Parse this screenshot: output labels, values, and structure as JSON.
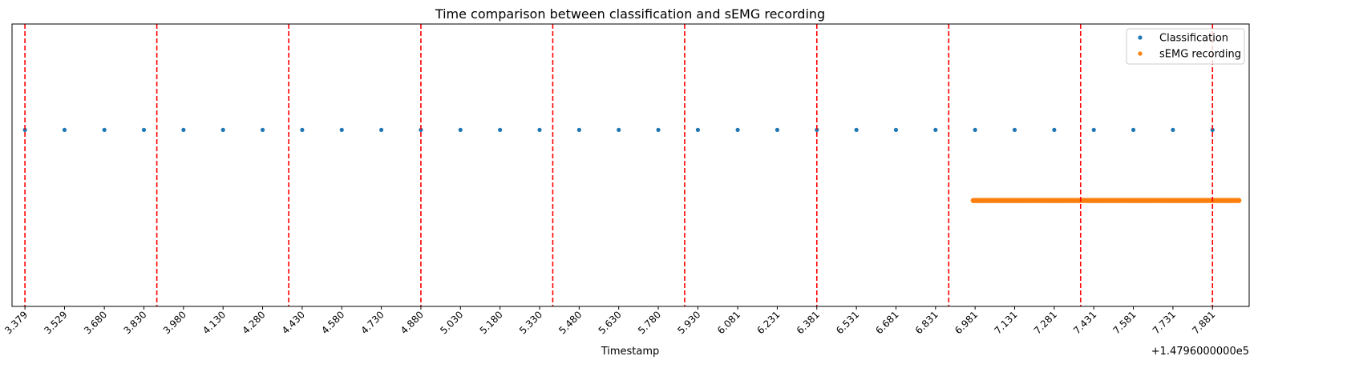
{
  "chart_data": {
    "type": "scatter",
    "title": "Time comparison between classification and sEMG recording",
    "xlabel": "Timestamp",
    "ylabel": "",
    "offset_label": "+1.4796000000e5",
    "xlim": [
      3.33,
      8.02
    ],
    "ylim": [
      -1.0,
      1.0
    ],
    "grid": false,
    "legend_position": "top-right",
    "xticks": [
      "3.379",
      "3.529",
      "3.680",
      "3.830",
      "3.980",
      "4.130",
      "4.280",
      "4.430",
      "4.580",
      "4.730",
      "4.880",
      "5.030",
      "5.180",
      "5.330",
      "5.480",
      "5.630",
      "5.780",
      "5.930",
      "6.081",
      "6.231",
      "6.381",
      "6.531",
      "6.681",
      "6.831",
      "6.981",
      "7.131",
      "7.281",
      "7.431",
      "7.581",
      "7.731",
      "7.881"
    ],
    "vlines": {
      "color": "#ff0000",
      "style": "dashed",
      "x": [
        3.379,
        3.879,
        4.379,
        4.88,
        5.38,
        5.88,
        6.381,
        6.881,
        7.381,
        7.881
      ]
    },
    "series": [
      {
        "name": "Classification",
        "color": "#1f77b4",
        "marker": "dot",
        "y": 0.25,
        "x": [
          3.379,
          3.529,
          3.68,
          3.83,
          3.98,
          4.13,
          4.28,
          4.43,
          4.58,
          4.73,
          4.88,
          5.03,
          5.18,
          5.33,
          5.48,
          5.63,
          5.78,
          5.93,
          6.081,
          6.231,
          6.381,
          6.531,
          6.681,
          6.831,
          6.981,
          7.131,
          7.281,
          7.431,
          7.581,
          7.731,
          7.881
        ]
      },
      {
        "name": "sEMG recording",
        "color": "#ff7f0e",
        "marker": "dot",
        "y": -0.25,
        "x_start": 6.974,
        "x_end": 7.981,
        "point_count": 160
      }
    ]
  }
}
